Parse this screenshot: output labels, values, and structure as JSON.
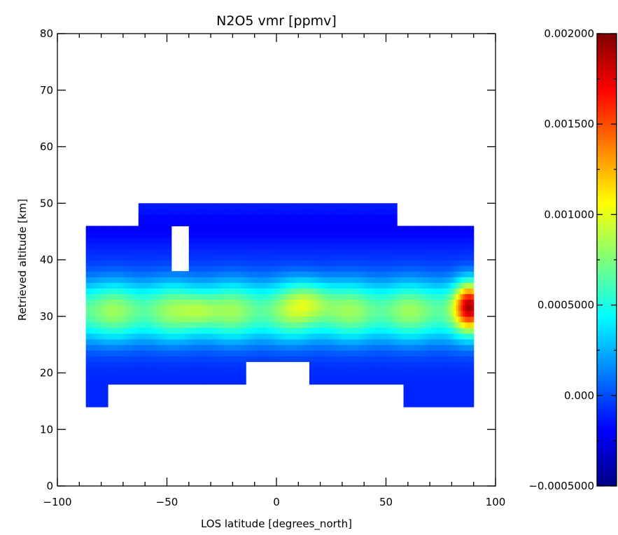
{
  "chart_data": {
    "type": "heatmap",
    "title": "N2O5 vmr [ppmv]",
    "xlabel": "LOS latitude [degrees_north]",
    "ylabel": "Retrieved altitude [km]",
    "xlim": [
      -100,
      100
    ],
    "ylim": [
      0,
      80
    ],
    "x_ticks": [
      -100,
      -50,
      0,
      50,
      100
    ],
    "x_tick_labels": [
      "−100",
      "−50",
      "0",
      "50",
      "100"
    ],
    "y_ticks": [
      0,
      10,
      20,
      30,
      40,
      50,
      60,
      70,
      80
    ],
    "y_tick_labels": [
      "0",
      "10",
      "20",
      "30",
      "40",
      "50",
      "60",
      "70",
      "80"
    ],
    "colorbar": {
      "colormap": "rainbow (dark blue to dark red)",
      "range": [
        -0.0005,
        0.002
      ],
      "ticks": [
        -0.0005,
        0.0,
        0.0005,
        0.001,
        0.0015,
        0.002
      ],
      "tick_labels": [
        "−0.0005000",
        "0.000",
        "0.0005000",
        "0.001000",
        "0.001500",
        "0.002000"
      ]
    },
    "data_extent": {
      "x_range": [
        -87,
        90
      ],
      "y_range": [
        14,
        50
      ],
      "missing_regions": [
        {
          "x": [
            -48,
            -40
          ],
          "y": [
            38,
            46
          ]
        },
        {
          "x": [
            -14,
            15
          ],
          "y": [
            18,
            22
          ]
        }
      ]
    },
    "features": [
      {
        "description": "enhanced band",
        "y_range": [
          26,
          36
        ],
        "approx_value": 0.0008
      },
      {
        "description": "maximum",
        "x": 88,
        "y": 32,
        "approx_value": 0.0018
      },
      {
        "description": "local maxima",
        "x": [
          10,
          20
        ],
        "y": 33,
        "approx_value": 0.0013
      }
    ]
  }
}
